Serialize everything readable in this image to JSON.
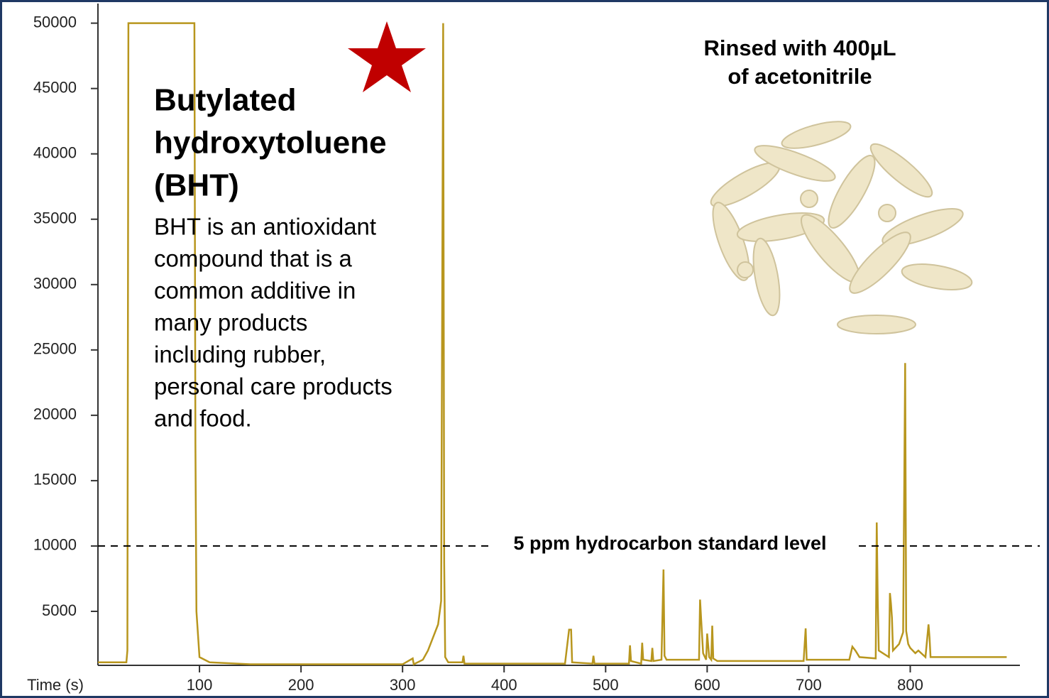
{
  "chart_data": {
    "type": "line",
    "x_label": "Time (s)",
    "x": [
      0,
      28,
      29,
      30,
      95,
      96,
      97,
      100,
      110,
      150,
      300,
      310,
      311,
      320,
      325,
      330,
      335,
      338,
      340,
      341,
      342,
      345,
      359,
      360,
      361,
      460,
      464,
      466,
      467,
      487,
      488,
      489,
      523,
      524,
      525,
      535,
      536,
      537,
      545,
      546,
      547,
      555,
      557,
      558,
      560,
      592,
      593,
      594,
      596,
      599,
      600,
      602,
      604,
      605,
      606,
      610,
      695,
      697,
      698,
      740,
      743,
      746,
      750,
      766,
      767,
      768,
      769,
      779,
      780,
      781,
      782,
      783,
      789,
      793,
      795,
      796,
      798,
      800,
      805,
      808,
      815,
      818,
      819,
      820,
      830,
      895
    ],
    "series": [
      {
        "color": "#b8961e",
        "values": [
          1100,
          1100,
          2000,
          50000,
          50000,
          17800,
          5000,
          1500,
          1100,
          950,
          950,
          1400,
          950,
          1300,
          2000,
          3000,
          4000,
          5800,
          50000,
          8700,
          1500,
          1100,
          1100,
          1600,
          1000,
          1000,
          3600,
          3600,
          1100,
          1000,
          1600,
          1000,
          1000,
          2400,
          1200,
          1000,
          2600,
          1300,
          1200,
          2200,
          1200,
          1300,
          8200,
          1600,
          1300,
          1300,
          5900,
          4500,
          1800,
          1300,
          3300,
          1500,
          1300,
          3900,
          1400,
          1200,
          1200,
          3700,
          1300,
          1300,
          2300,
          2000,
          1500,
          1400,
          11800,
          5800,
          2000,
          1500,
          6400,
          5600,
          4500,
          2000,
          2500,
          3400,
          24000,
          3500,
          2500,
          2200,
          1800,
          2000,
          1500,
          4000,
          3000,
          1500,
          1500,
          1500
        ]
      }
    ],
    "xlim": [
      0,
      908
    ],
    "xticks": [
      100,
      200,
      300,
      400,
      500,
      600,
      700,
      800
    ],
    "ylim": [
      870,
      51500
    ],
    "yticks": [
      5000,
      10000,
      15000,
      20000,
      25000,
      30000,
      35000,
      40000,
      45000,
      50000
    ],
    "grid": false,
    "reference_line": {
      "value": 10000,
      "label": "5 ppm hydrocarbon standard level"
    },
    "heading": [
      "Butylated",
      "hydroxytoluene",
      "(BHT)"
    ],
    "description": [
      "BHT is an antioxidant",
      "compound that is a",
      "common additive in",
      "many products",
      "including rubber,",
      "personal care products",
      "and food."
    ],
    "image_caption": [
      "Rinsed with 400µL",
      "of acetonitrile"
    ]
  }
}
